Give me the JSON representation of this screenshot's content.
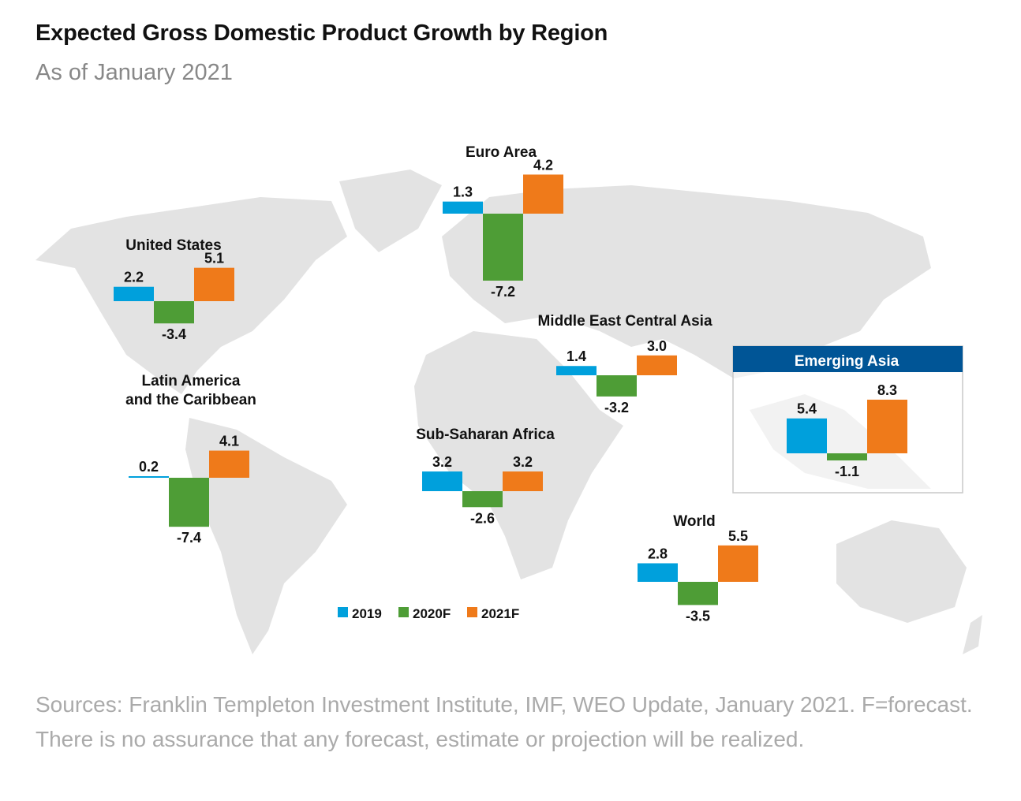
{
  "header": {
    "title": "Expected Gross Domestic Product Growth by Region",
    "subtitle": "As of January 2021"
  },
  "chart_data": {
    "type": "bar",
    "background": "world-map",
    "series_names": [
      "2019",
      "2020F",
      "2021F"
    ],
    "colors": {
      "2019": "#00a0dc",
      "2020F": "#4e9d36",
      "2021F": "#ef7a1a",
      "highlight_header": "#005596",
      "map": "#e3e3e3"
    },
    "legend": {
      "position": "bottom-center",
      "entries": [
        "2019",
        "2020F",
        "2021F"
      ]
    },
    "groups": [
      {
        "name": "United States",
        "values": [
          2.2,
          -3.4,
          5.1
        ],
        "labels": [
          "2.2",
          "-3.4",
          "5.1"
        ]
      },
      {
        "name": "Euro Area",
        "values": [
          1.3,
          -7.2,
          4.2
        ],
        "labels": [
          "1.3",
          "-7.2",
          "4.2"
        ]
      },
      {
        "name": "Middle East Central Asia",
        "values": [
          1.4,
          -3.2,
          3.0
        ],
        "labels": [
          "1.4",
          "-3.2",
          "3.0"
        ]
      },
      {
        "name": "Latin America and the Caribbean",
        "name_lines": [
          "Latin America",
          "and the Caribbean"
        ],
        "values": [
          0.2,
          -7.4,
          4.1
        ],
        "labels": [
          "0.2",
          "-7.4",
          "4.1"
        ]
      },
      {
        "name": "Sub-Saharan Africa",
        "values": [
          3.2,
          -2.6,
          3.2
        ],
        "labels": [
          "3.2",
          "-2.6",
          "3.2"
        ]
      },
      {
        "name": "Emerging Asia",
        "highlighted": true,
        "values": [
          5.4,
          -1.1,
          8.3
        ],
        "labels": [
          "5.4",
          "-1.1",
          "8.3"
        ]
      },
      {
        "name": "World",
        "values": [
          2.8,
          -3.5,
          5.5
        ],
        "labels": [
          "2.8",
          "-3.5",
          "5.5"
        ]
      }
    ]
  },
  "footer": {
    "note": "Sources: Franklin Templeton Investment Institute, IMF, WEO Update, January 2021. F=forecast. There is no assurance that any forecast, estimate or projection will be realized."
  }
}
